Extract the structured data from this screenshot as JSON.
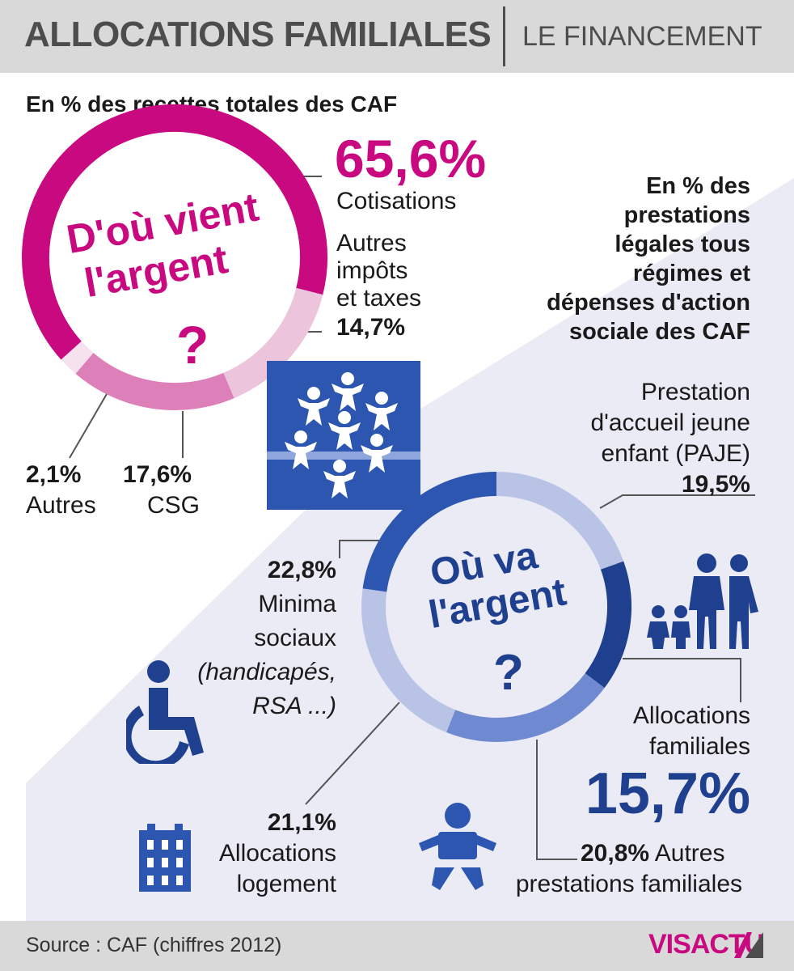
{
  "header": {
    "title": "ALLOCATIONS FAMILIALES",
    "subtitle": "LE FINANCEMENT"
  },
  "income": {
    "heading": "En % des recettes totales des CAF",
    "circle_label_1": "D'où vient",
    "circle_label_2": "l'argent",
    "question_mark": "?",
    "cotisations_value": "65,6%",
    "cotisations_label": "Cotisations",
    "impots_label_1": "Autres",
    "impots_label_2": "impôts",
    "impots_label_3": "et taxes",
    "impots_value": "14,7%",
    "autres_value": "2,1%",
    "autres_label": "Autres",
    "csg_value": "17,6%",
    "csg_label": "CSG"
  },
  "spending": {
    "heading_1": "En % des",
    "heading_2": "prestations",
    "heading_3": "légales tous",
    "heading_4": "régimes et",
    "heading_5": "dépenses d'action",
    "heading_6": "sociale des CAF",
    "circle_label_1": "Où va",
    "circle_label_2": "l'argent",
    "question_mark": "?",
    "paje_label_1": "Prestation",
    "paje_label_2": "d'accueil jeune",
    "paje_label_3": "enfant (PAJE)",
    "paje_value": "19,5%",
    "minima_value": "22,8%",
    "minima_label_1": "Minima",
    "minima_label_2": "sociaux",
    "minima_label_3": "(handicapés,",
    "minima_label_4": "RSA ...)",
    "alloc_fam_label_1": "Allocations",
    "alloc_fam_label_2": "familiales",
    "alloc_fam_value": "15,7%",
    "logement_value": "21,1%",
    "logement_label_1": "Allocations",
    "logement_label_2": "logement",
    "autres_pf_value": "20,8%",
    "autres_pf_label_1": "Autres",
    "autres_pf_label_2": "prestations familiales"
  },
  "footer": {
    "source": "Source : CAF (chiffres 2012)",
    "brand_vis": "VIS",
    "brand_actu": "ACTU"
  },
  "colors": {
    "pink": "#c9097f",
    "pink_mid": "#dd7fb8",
    "pink_light": "#ecc4dc",
    "pink_pale": "#f6e1ee",
    "navy": "#1f3f8f",
    "blue": "#2c56b0",
    "blue_mid": "#6f8ad0",
    "blue_light": "#b8c3e6",
    "header_grey": "#d9d9d9",
    "bg_lavender": "#ebebf6"
  },
  "chart_data": [
    {
      "type": "pie",
      "title": "D'où vient l'argent ?",
      "subtitle": "En % des recettes totales des CAF",
      "categories": [
        "Cotisations",
        "Autres impôts et taxes",
        "CSG",
        "Autres"
      ],
      "values": [
        65.6,
        14.7,
        17.6,
        2.1
      ]
    },
    {
      "type": "pie",
      "title": "Où va l'argent ?",
      "subtitle": "En % des prestations légales tous régimes et dépenses d'action sociale des CAF",
      "categories": [
        "Prestation d'accueil jeune enfant (PAJE)",
        "Allocations familiales",
        "Autres prestations familiales",
        "Allocations logement",
        "Minima sociaux (handicapés, RSA ...)"
      ],
      "values": [
        19.5,
        15.7,
        20.8,
        21.1,
        22.8
      ]
    }
  ]
}
